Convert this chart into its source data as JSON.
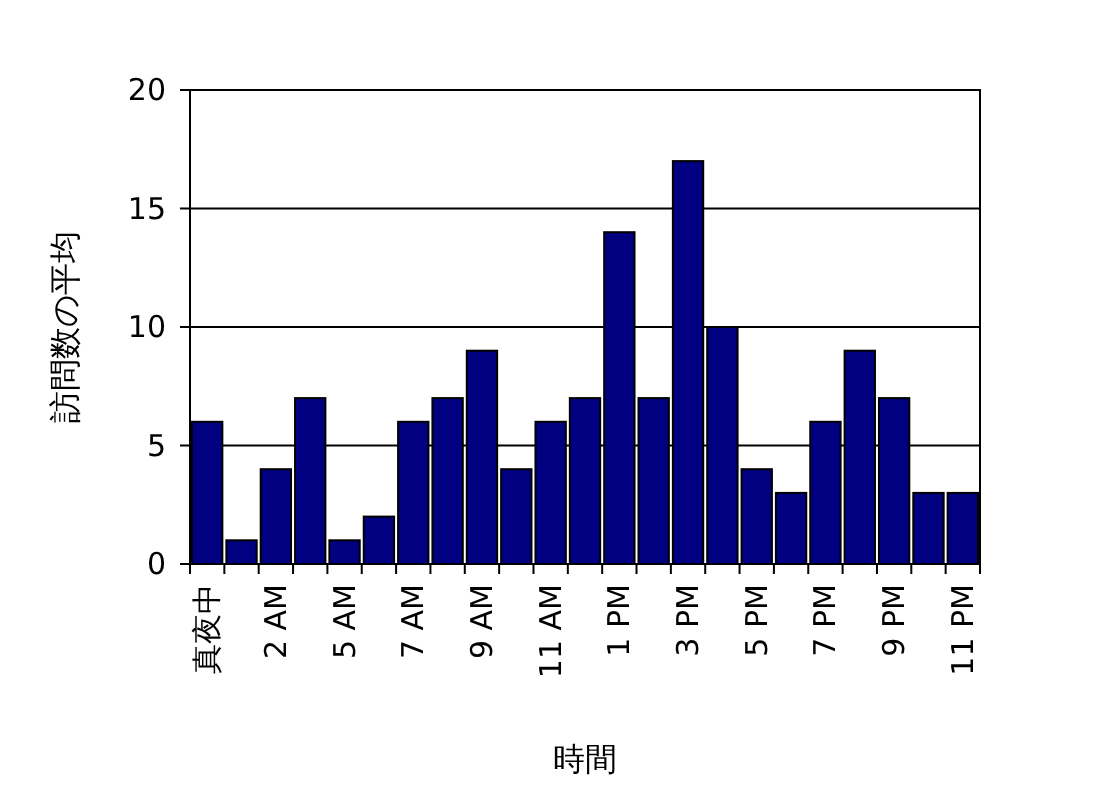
{
  "chart_data": {
    "type": "bar",
    "xlabel": "時間",
    "ylabel": "訪問数の平均",
    "categories": [
      "真夜中",
      null,
      "2 AM",
      null,
      "5 AM",
      null,
      "7 AM",
      null,
      "9 AM",
      null,
      "11 AM",
      null,
      "1 PM",
      null,
      "3 PM",
      null,
      "5 PM",
      null,
      "7 PM",
      null,
      "9 PM",
      null,
      "11 PM"
    ],
    "values": [
      6,
      1,
      4,
      7,
      1,
      2,
      6,
      7,
      9,
      4,
      6,
      7,
      14,
      7,
      17,
      10,
      4,
      3,
      6,
      9,
      7,
      3,
      3
    ],
    "color": "#000080",
    "ylim": [
      0,
      20
    ],
    "yticks": [
      0,
      5,
      10,
      15,
      20
    ],
    "grid": "y"
  }
}
